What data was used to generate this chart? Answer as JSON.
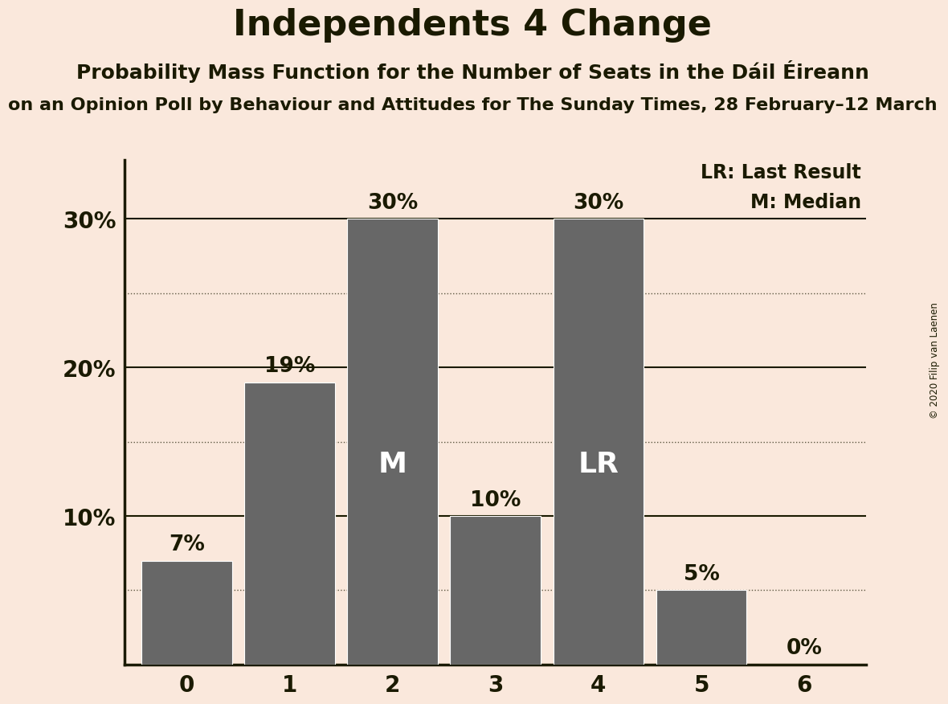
{
  "title": "Independents 4 Change",
  "subtitle": "Probability Mass Function for the Number of Seats in the Dáil Éireann",
  "subsubtitle": "on an Opinion Poll by Behaviour and Attitudes for The Sunday Times, 28 February–12 March",
  "copyright": "© 2020 Filip van Laenen",
  "categories": [
    0,
    1,
    2,
    3,
    4,
    5,
    6
  ],
  "values": [
    7,
    19,
    30,
    10,
    30,
    5,
    0
  ],
  "bar_color": "#676767",
  "background_color": "#FAE8DC",
  "bar_labels": [
    "7%",
    "19%",
    "30%",
    "10%",
    "30%",
    "5%",
    "0%"
  ],
  "median_bar": 2,
  "last_result_bar": 4,
  "median_label": "M",
  "last_result_label": "LR",
  "legend_lr": "LR: Last Result",
  "legend_m": "M: Median",
  "ylabel_ticks": [
    0,
    10,
    20,
    30
  ],
  "ylabel_tick_labels": [
    "",
    "10%",
    "20%",
    "30%"
  ],
  "dotted_lines": [
    5,
    15,
    25
  ],
  "solid_lines": [
    10,
    20,
    30
  ],
  "ylim": [
    0,
    34
  ],
  "title_fontsize": 32,
  "subtitle_fontsize": 18,
  "subsubtitle_fontsize": 16,
  "tick_fontsize": 20,
  "bar_label_fontsize": 19,
  "inside_label_fontsize": 26,
  "legend_fontsize": 17,
  "text_color": "#1a1a00"
}
